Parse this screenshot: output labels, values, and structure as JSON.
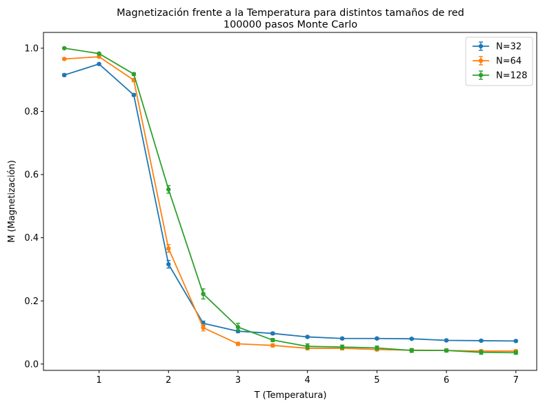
{
  "chart_data": {
    "type": "line",
    "title_line1": "Magnetización frente a la Temperatura para distintos tamaños de red",
    "title_line2": "100000 pasos Monte Carlo",
    "xlabel": "T (Temperatura)",
    "ylabel": "M (Magnetización)",
    "xlim": [
      0.2,
      7.3
    ],
    "ylim": [
      -0.02,
      1.05
    ],
    "xticks": [
      1,
      2,
      3,
      4,
      5,
      6,
      7
    ],
    "xtick_labels": [
      "1",
      "2",
      "3",
      "4",
      "5",
      "6",
      "7"
    ],
    "yticks": [
      0.0,
      0.2,
      0.4,
      0.6,
      0.8,
      1.0
    ],
    "ytick_labels": [
      "0.0",
      "0.2",
      "0.4",
      "0.6",
      "0.8",
      "1.0"
    ],
    "grid": false,
    "legend_position": "top-right",
    "x": [
      0.5,
      1.0,
      1.5,
      2.0,
      2.5,
      3.0,
      3.5,
      4.0,
      4.5,
      5.0,
      5.5,
      6.0,
      6.5,
      7.0
    ],
    "series": [
      {
        "name": "N=32",
        "color": "#1f77b4",
        "values": [
          0.915,
          0.95,
          0.852,
          0.316,
          0.129,
          0.104,
          0.097,
          0.086,
          0.081,
          0.081,
          0.08,
          0.075,
          0.074,
          0.073
        ],
        "errors": [
          0.004,
          0.003,
          0.004,
          0.012,
          0.007,
          0.004,
          0.004,
          0.003,
          0.003,
          0.003,
          0.003,
          0.003,
          0.003,
          0.003
        ]
      },
      {
        "name": "N=64",
        "color": "#ff7f0e",
        "values": [
          0.966,
          0.973,
          0.899,
          0.366,
          0.115,
          0.064,
          0.059,
          0.05,
          0.05,
          0.046,
          0.044,
          0.043,
          0.041,
          0.041
        ],
        "errors": [
          0.003,
          0.003,
          0.005,
          0.012,
          0.01,
          0.005,
          0.005,
          0.005,
          0.005,
          0.004,
          0.004,
          0.004,
          0.004,
          0.004
        ]
      },
      {
        "name": "N=128",
        "color": "#2ca02c",
        "values": [
          1.0,
          0.983,
          0.918,
          0.553,
          0.222,
          0.117,
          0.076,
          0.056,
          0.054,
          0.051,
          0.043,
          0.043,
          0.037,
          0.036
        ],
        "errors": [
          0.002,
          0.003,
          0.004,
          0.012,
          0.016,
          0.012,
          0.005,
          0.008,
          0.006,
          0.006,
          0.006,
          0.005,
          0.006,
          0.005
        ]
      }
    ]
  }
}
